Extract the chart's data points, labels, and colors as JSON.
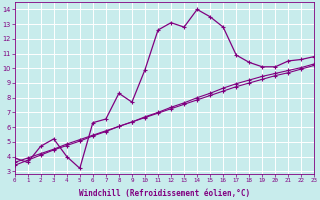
{
  "xlabel": "Windchill (Refroidissement éolien,°C)",
  "bg_color": "#c8ecec",
  "line_color": "#800080",
  "grid_color": "#ffffff",
  "x_data": [
    0,
    1,
    2,
    3,
    4,
    5,
    6,
    7,
    8,
    9,
    10,
    11,
    12,
    13,
    14,
    15,
    16,
    17,
    18,
    19,
    20,
    21,
    22,
    23
  ],
  "y_curve": [
    3.9,
    3.6,
    4.7,
    5.2,
    4.0,
    3.2,
    6.3,
    6.55,
    8.3,
    7.7,
    9.9,
    12.6,
    13.1,
    12.8,
    14.0,
    13.5,
    12.8,
    10.9,
    10.4,
    10.1,
    10.1,
    10.5,
    10.6,
    10.8
  ],
  "y_line1": [
    3.6,
    3.9,
    4.2,
    4.5,
    4.85,
    5.15,
    5.45,
    5.75,
    6.05,
    6.35,
    6.65,
    6.95,
    7.25,
    7.55,
    7.85,
    8.15,
    8.45,
    8.75,
    9.0,
    9.25,
    9.5,
    9.7,
    9.95,
    10.2
  ],
  "y_line2": [
    3.4,
    3.75,
    4.1,
    4.45,
    4.75,
    5.05,
    5.4,
    5.7,
    6.05,
    6.35,
    6.7,
    7.0,
    7.35,
    7.65,
    8.0,
    8.3,
    8.65,
    8.95,
    9.2,
    9.45,
    9.65,
    9.85,
    10.05,
    10.3
  ],
  "ylim": [
    2.8,
    14.5
  ],
  "xlim": [
    0,
    23
  ],
  "yticks": [
    3,
    4,
    5,
    6,
    7,
    8,
    9,
    10,
    11,
    12,
    13,
    14
  ],
  "xticks": [
    0,
    1,
    2,
    3,
    4,
    5,
    6,
    7,
    8,
    9,
    10,
    11,
    12,
    13,
    14,
    15,
    16,
    17,
    18,
    19,
    20,
    21,
    22,
    23
  ]
}
